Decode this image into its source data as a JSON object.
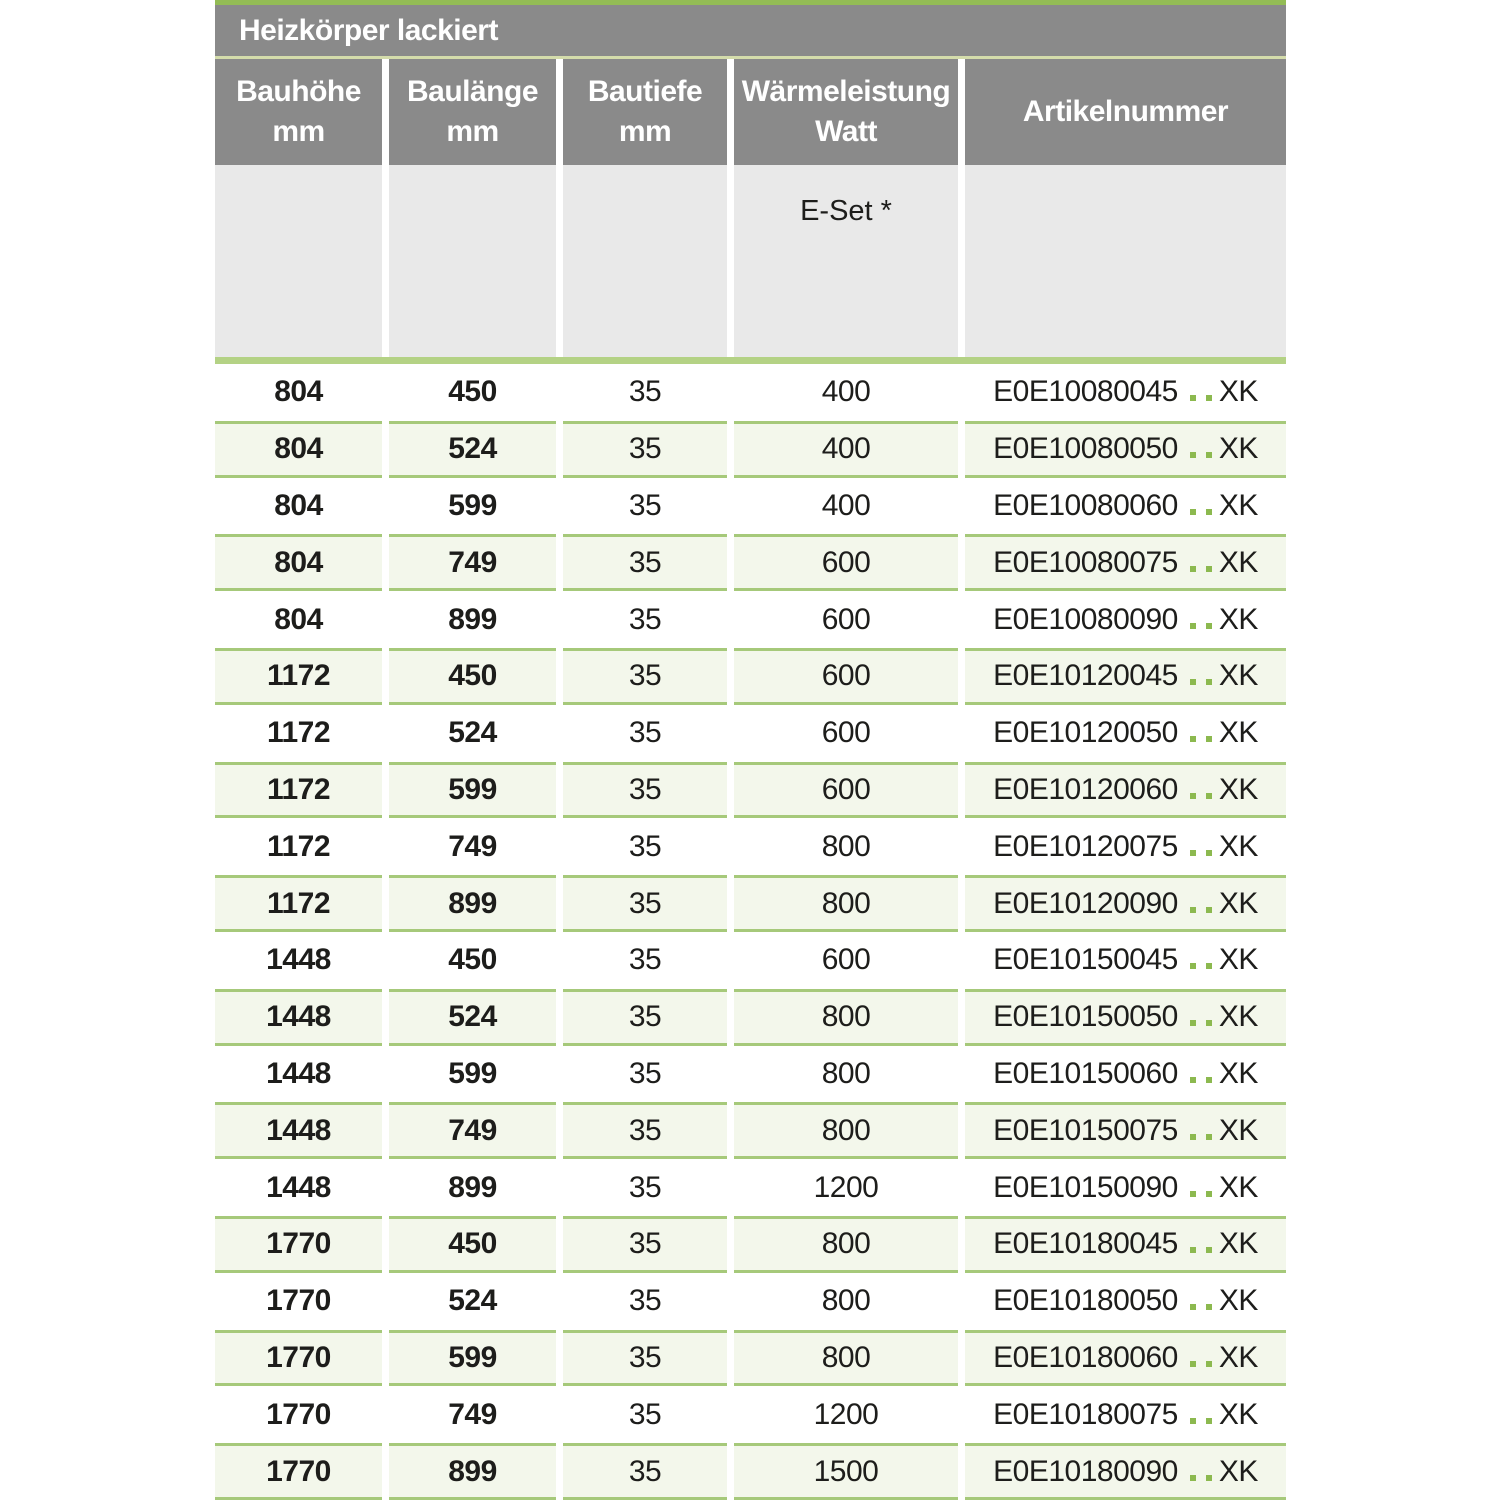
{
  "table": {
    "title": "Heizkörper lackiert",
    "columns": [
      {
        "id": "bauhoehe",
        "line1": "Bauhöhe",
        "line2": "mm"
      },
      {
        "id": "baulaenge",
        "line1": "Baulänge",
        "line2": "mm"
      },
      {
        "id": "bautiefe",
        "line1": "Bautiefe",
        "line2": "mm"
      },
      {
        "id": "waermeleistung",
        "line1": "Wärmeleistung",
        "line2": "Watt"
      },
      {
        "id": "artikelnummer",
        "line1": "Artikelnummer",
        "line2": ""
      }
    ],
    "subheader": {
      "e_set_label": "E-Set *"
    },
    "rows": [
      {
        "bauhoehe_mm": "804",
        "baulaenge_mm": "450",
        "bautiefe_mm": "35",
        "waermeleistung_watt": "400",
        "artikel_prefix": "E0E10080045",
        "artikel_suffix": "XK"
      },
      {
        "bauhoehe_mm": "804",
        "baulaenge_mm": "524",
        "bautiefe_mm": "35",
        "waermeleistung_watt": "400",
        "artikel_prefix": "E0E10080050",
        "artikel_suffix": "XK"
      },
      {
        "bauhoehe_mm": "804",
        "baulaenge_mm": "599",
        "bautiefe_mm": "35",
        "waermeleistung_watt": "400",
        "artikel_prefix": "E0E10080060",
        "artikel_suffix": "XK"
      },
      {
        "bauhoehe_mm": "804",
        "baulaenge_mm": "749",
        "bautiefe_mm": "35",
        "waermeleistung_watt": "600",
        "artikel_prefix": "E0E10080075",
        "artikel_suffix": "XK"
      },
      {
        "bauhoehe_mm": "804",
        "baulaenge_mm": "899",
        "bautiefe_mm": "35",
        "waermeleistung_watt": "600",
        "artikel_prefix": "E0E10080090",
        "artikel_suffix": "XK"
      },
      {
        "bauhoehe_mm": "1172",
        "baulaenge_mm": "450",
        "bautiefe_mm": "35",
        "waermeleistung_watt": "600",
        "artikel_prefix": "E0E10120045",
        "artikel_suffix": "XK"
      },
      {
        "bauhoehe_mm": "1172",
        "baulaenge_mm": "524",
        "bautiefe_mm": "35",
        "waermeleistung_watt": "600",
        "artikel_prefix": "E0E10120050",
        "artikel_suffix": "XK"
      },
      {
        "bauhoehe_mm": "1172",
        "baulaenge_mm": "599",
        "bautiefe_mm": "35",
        "waermeleistung_watt": "600",
        "artikel_prefix": "E0E10120060",
        "artikel_suffix": "XK"
      },
      {
        "bauhoehe_mm": "1172",
        "baulaenge_mm": "749",
        "bautiefe_mm": "35",
        "waermeleistung_watt": "800",
        "artikel_prefix": "E0E10120075",
        "artikel_suffix": "XK"
      },
      {
        "bauhoehe_mm": "1172",
        "baulaenge_mm": "899",
        "bautiefe_mm": "35",
        "waermeleistung_watt": "800",
        "artikel_prefix": "E0E10120090",
        "artikel_suffix": "XK"
      },
      {
        "bauhoehe_mm": "1448",
        "baulaenge_mm": "450",
        "bautiefe_mm": "35",
        "waermeleistung_watt": "600",
        "artikel_prefix": "E0E10150045",
        "artikel_suffix": "XK"
      },
      {
        "bauhoehe_mm": "1448",
        "baulaenge_mm": "524",
        "bautiefe_mm": "35",
        "waermeleistung_watt": "800",
        "artikel_prefix": "E0E10150050",
        "artikel_suffix": "XK"
      },
      {
        "bauhoehe_mm": "1448",
        "baulaenge_mm": "599",
        "bautiefe_mm": "35",
        "waermeleistung_watt": "800",
        "artikel_prefix": "E0E10150060",
        "artikel_suffix": "XK"
      },
      {
        "bauhoehe_mm": "1448",
        "baulaenge_mm": "749",
        "bautiefe_mm": "35",
        "waermeleistung_watt": "800",
        "artikel_prefix": "E0E10150075",
        "artikel_suffix": "XK"
      },
      {
        "bauhoehe_mm": "1448",
        "baulaenge_mm": "899",
        "bautiefe_mm": "35",
        "waermeleistung_watt": "1200",
        "artikel_prefix": "E0E10150090",
        "artikel_suffix": "XK"
      },
      {
        "bauhoehe_mm": "1770",
        "baulaenge_mm": "450",
        "bautiefe_mm": "35",
        "waermeleistung_watt": "800",
        "artikel_prefix": "E0E10180045",
        "artikel_suffix": "XK"
      },
      {
        "bauhoehe_mm": "1770",
        "baulaenge_mm": "524",
        "bautiefe_mm": "35",
        "waermeleistung_watt": "800",
        "artikel_prefix": "E0E10180050",
        "artikel_suffix": "XK"
      },
      {
        "bauhoehe_mm": "1770",
        "baulaenge_mm": "599",
        "bautiefe_mm": "35",
        "waermeleistung_watt": "800",
        "artikel_prefix": "E0E10180060",
        "artikel_suffix": "XK"
      },
      {
        "bauhoehe_mm": "1770",
        "baulaenge_mm": "749",
        "bautiefe_mm": "35",
        "waermeleistung_watt": "1200",
        "artikel_prefix": "E0E10180075",
        "artikel_suffix": "XK"
      },
      {
        "bauhoehe_mm": "1770",
        "baulaenge_mm": "899",
        "bautiefe_mm": "35",
        "waermeleistung_watt": "1500",
        "artikel_prefix": "E0E10180090",
        "artikel_suffix": "XK"
      }
    ],
    "colors": {
      "header_gray": "#8a8a8a",
      "subheader_gray": "#e9e9e9",
      "accent_green_top": "#93bc55",
      "accent_green_pale": "#d4dcab",
      "accent_green_thick": "#b4d285",
      "row_border_green": "#a6c97a",
      "row_alt_bg": "#f3f7eb",
      "dot_green": "#8cb94f",
      "text_dark": "#1d1d1b",
      "header_text": "#ffffff"
    }
  }
}
